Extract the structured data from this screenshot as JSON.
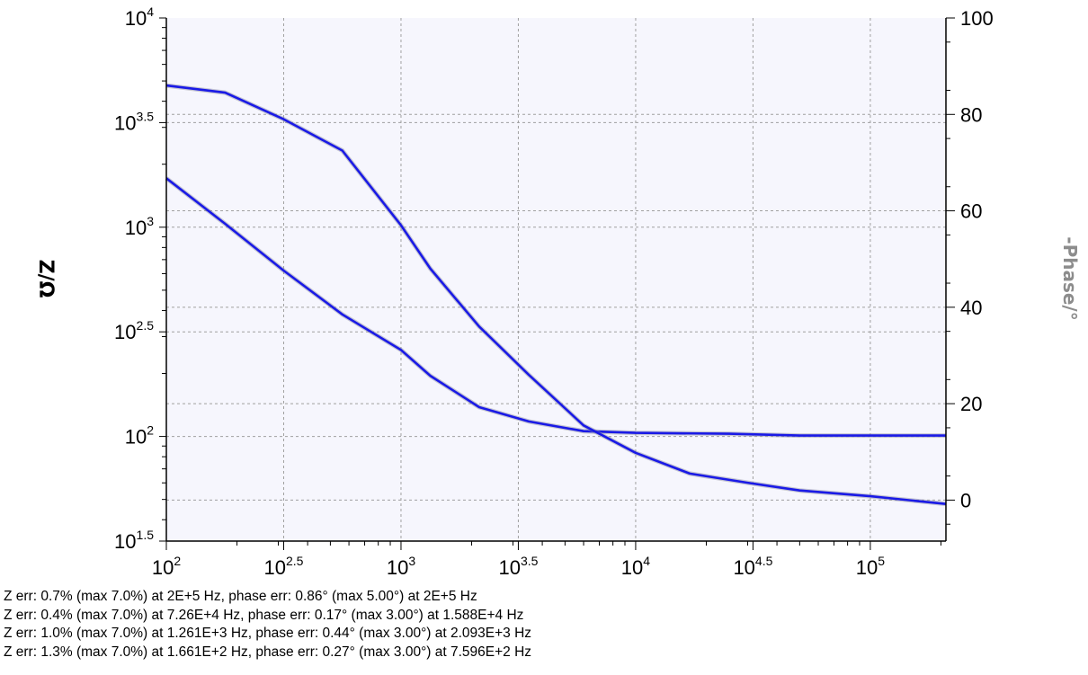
{
  "chart_data": {
    "type": "line",
    "x_scale": "log",
    "x_range_hz": [
      100,
      210000
    ],
    "x_ticks": [
      {
        "value": 100,
        "base": "10",
        "exp": "2"
      },
      {
        "value": 316.2,
        "base": "10",
        "exp": "2.5"
      },
      {
        "value": 1000,
        "base": "10",
        "exp": "3"
      },
      {
        "value": 3162,
        "base": "10",
        "exp": "3.5"
      },
      {
        "value": 10000,
        "base": "10",
        "exp": "4"
      },
      {
        "value": 31623,
        "base": "10",
        "exp": "4.5"
      },
      {
        "value": 100000,
        "base": "10",
        "exp": "5"
      }
    ],
    "y_left": {
      "label": "Z/Ω",
      "scale": "log",
      "range": [
        31.62,
        10000
      ],
      "ticks": [
        {
          "value": 31.62,
          "base": "10",
          "exp": "1.5"
        },
        {
          "value": 100,
          "base": "10",
          "exp": "2"
        },
        {
          "value": 316.2,
          "base": "10",
          "exp": "2.5"
        },
        {
          "value": 1000,
          "base": "10",
          "exp": "3"
        },
        {
          "value": 3162,
          "base": "10",
          "exp": "3.5"
        },
        {
          "value": 10000,
          "base": "10",
          "exp": "4"
        }
      ]
    },
    "y_right": {
      "label": "-Phase/°",
      "scale": "linear",
      "range": [
        -8.5,
        100
      ],
      "ticks": [
        "0",
        "20",
        "40",
        "60",
        "80",
        "100"
      ]
    },
    "grid": true,
    "series": [
      {
        "axis": "left",
        "color": "#1a1ae6",
        "x": [
          100,
          178,
          316,
          562,
          1000,
          1334,
          2154,
          3500,
          6000,
          10000,
          25000,
          50000,
          100000,
          210000
        ],
        "y": [
          1714,
          1038,
          621,
          383,
          259,
          195,
          138,
          118,
          106,
          104,
          103,
          101,
          101,
          101
        ]
      },
      {
        "axis": "right",
        "color": "#1a1ae6",
        "x": [
          100,
          178,
          316,
          562,
          1000,
          1334,
          2154,
          3500,
          6000,
          10000,
          17000,
          30000,
          50000,
          100000,
          210000
        ],
        "y": [
          86,
          84.5,
          79,
          72.5,
          57,
          48,
          36,
          26,
          15.5,
          9.8,
          5.5,
          3.6,
          2,
          0.8,
          -0.8
        ]
      }
    ]
  },
  "fit_errors": [
    "Z err: 0.7% (max 7.0%) at 2E+5 Hz, phase err: 0.86° (max 5.00°) at 2E+5 Hz",
    "Z err: 0.4% (max 7.0%) at 7.26E+4 Hz, phase err: 0.17° (max 3.00°) at 1.588E+4 Hz",
    "Z err: 1.0% (max 7.0%) at 1.261E+3 Hz, phase err: 0.44° (max 3.00°) at 2.093E+3 Hz",
    "Z err: 1.3% (max 7.0%) at 1.661E+2 Hz, phase err: 0.27° (max 3.00°) at 7.596E+2 Hz"
  ],
  "colors": {
    "plot_background": "#f6f6fd",
    "grid": "#a0a0a0",
    "series": "#1a1ae6",
    "right_axis_label": "#8c8c8c"
  }
}
